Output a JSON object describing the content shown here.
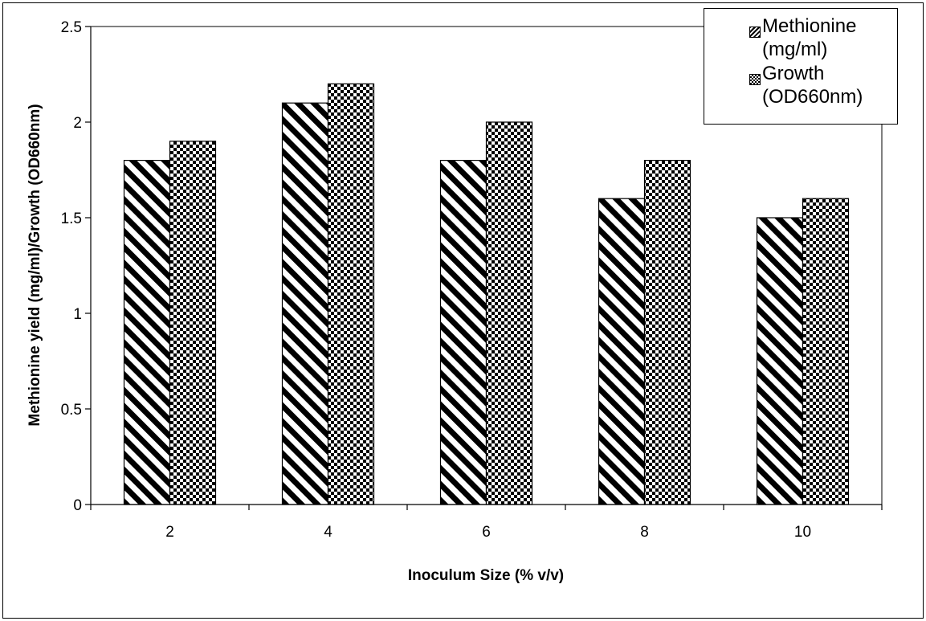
{
  "chart_data": {
    "type": "bar",
    "categories": [
      "2",
      "4",
      "6",
      "8",
      "10"
    ],
    "series": [
      {
        "name": "Methionine (mg/ml)",
        "pattern": "diagonal-stripes",
        "values": [
          1.8,
          2.1,
          1.8,
          1.6,
          1.5
        ]
      },
      {
        "name": "Growth (OD660nm)",
        "pattern": "checkerboard",
        "values": [
          1.9,
          2.2,
          2.0,
          1.8,
          1.6
        ]
      }
    ],
    "y_ticks": [
      "0",
      "0.5",
      "1",
      "1.5",
      "2",
      "2.5"
    ],
    "ylim": [
      0,
      2.5
    ],
    "xlabel": "Inoculum Size (% v/v)",
    "ylabel": "Methionine yield  (mg/ml)/Growth (OD660nm)",
    "legend_position": "top-right",
    "grid": false,
    "colors": {
      "bar_ink": "#000000",
      "bar_paper": "#ffffff"
    }
  }
}
